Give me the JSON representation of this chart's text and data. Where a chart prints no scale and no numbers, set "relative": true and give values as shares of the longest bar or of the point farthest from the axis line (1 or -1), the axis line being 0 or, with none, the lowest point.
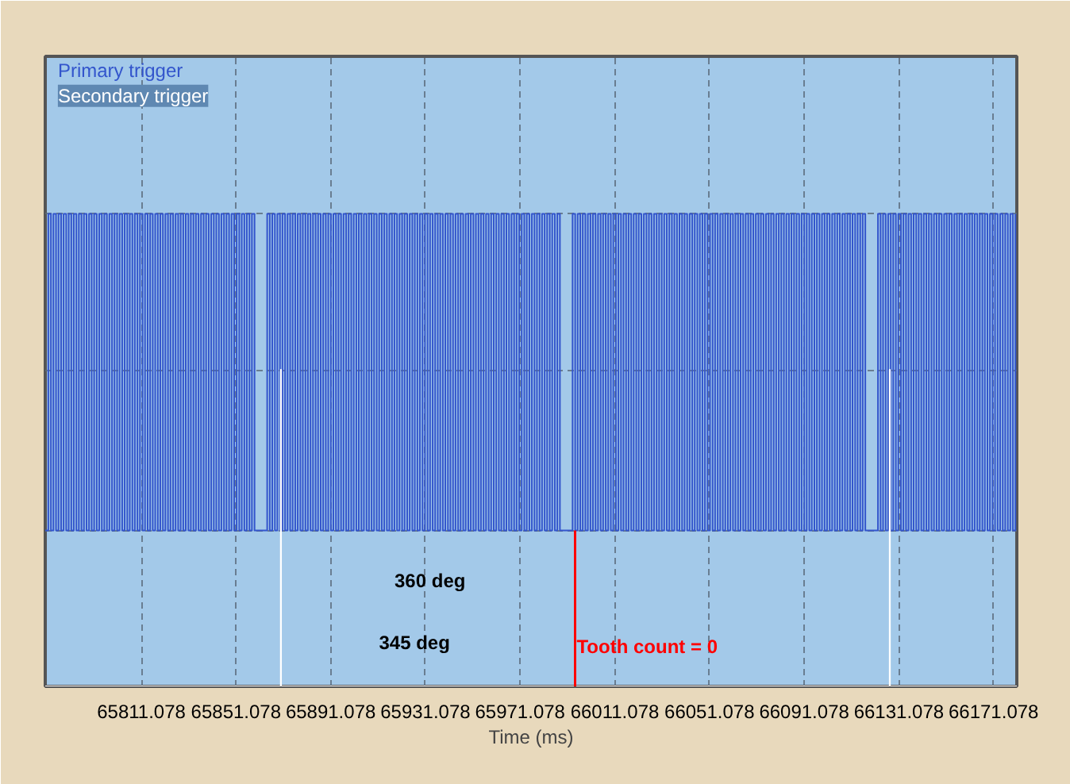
{
  "chart_data": {
    "type": "step",
    "relative": true,
    "xlabel": "Time (ms)",
    "xlim": [
      65770.5,
      66180.9
    ],
    "xticks": [
      {
        "value": 65811.078,
        "label": "65811.078"
      },
      {
        "value": 65851.078,
        "label": "65851.078"
      },
      {
        "value": 65891.078,
        "label": "65891.078"
      },
      {
        "value": 65931.078,
        "label": "65931.078"
      },
      {
        "value": 65971.078,
        "label": "65971.078"
      },
      {
        "value": 66011.078,
        "label": "66011.078"
      },
      {
        "value": 66051.078,
        "label": "66051.078"
      },
      {
        "value": 66091.078,
        "label": "66091.078"
      },
      {
        "value": 66131.078,
        "label": "66131.078"
      },
      {
        "value": 66171.078,
        "label": "66171.078"
      }
    ],
    "grid": true,
    "legend": "top left",
    "marker": "none",
    "line_style": "solid",
    "series": [
      {
        "name": "Primary trigger",
        "color": "#3355cc",
        "x": [
          65770.5,
          65771.8,
          65772.9,
          65773.95,
          65775.05,
          65776.1,
          65777.2,
          65778.25,
          65779.35,
          65780.4,
          65781.5,
          65782.55,
          65783.65,
          65784.7,
          65785.8,
          65786.85,
          65787.95,
          65789.0,
          65790.1,
          65791.15,
          65792.25,
          65793.3,
          65794.4,
          65795.45,
          65796.55,
          65797.6,
          65798.7,
          65799.75,
          65800.85,
          65801.9,
          65803.0,
          65804.05,
          65805.15,
          65806.2,
          65807.3,
          65808.35,
          65809.45,
          65810.5,
          65811.6,
          65812.65,
          65813.75,
          65814.8,
          65815.9,
          65816.95,
          65818.05,
          65819.1,
          65820.2,
          65821.25,
          65822.35,
          65823.4,
          65824.5,
          65825.55,
          65826.65,
          65827.7,
          65828.8,
          65829.85,
          65830.95,
          65832.0,
          65833.1,
          65834.15,
          65835.25,
          65836.3,
          65837.4,
          65838.45,
          65839.55,
          65840.6,
          65841.7,
          65842.75,
          65843.85,
          65844.9,
          65846.0,
          65847.05,
          65848.15,
          65849.2,
          65850.3,
          65851.35,
          65852.45,
          65853.5,
          65854.6,
          65855.65,
          65856.75,
          65857.8,
          65858.9,
          65864.25,
          65865.35,
          65866.4,
          65867.5,
          65868.55,
          65869.65,
          65870.7,
          65871.8,
          65872.85,
          65873.95,
          65875.0,
          65876.1,
          65877.15,
          65878.25,
          65879.3,
          65880.4,
          65881.45,
          65882.55,
          65883.6,
          65884.7,
          65885.75,
          65886.85,
          65887.9,
          65889.0,
          65890.05,
          65891.15,
          65892.2,
          65893.3,
          65894.35,
          65895.45,
          65896.5,
          65897.6,
          65898.65,
          65899.75,
          65900.8,
          65901.9,
          65902.95,
          65904.05,
          65905.1,
          65906.2,
          65907.25,
          65908.35,
          65909.4,
          65910.5,
          65911.55,
          65912.65,
          65913.7,
          65914.8,
          65915.85,
          65916.95,
          65918.0,
          65919.1,
          65920.15,
          65921.25,
          65922.3,
          65923.4,
          65924.45,
          65925.55,
          65926.6,
          65927.7,
          65928.75,
          65929.85,
          65930.9,
          65932.0,
          65933.05,
          65934.15,
          65935.2,
          65936.3,
          65937.35,
          65938.45,
          65939.5,
          65940.6,
          65941.65,
          65942.75,
          65943.8,
          65944.9,
          65945.95,
          65947.05,
          65948.1,
          65949.2,
          65950.25,
          65951.35,
          65952.4,
          65953.5,
          65954.55,
          65955.65,
          65956.7,
          65957.8,
          65958.85,
          65959.95,
          65961.0,
          65962.1,
          65963.15,
          65964.25,
          65965.3,
          65966.4,
          65967.45,
          65968.55,
          65969.6,
          65970.7,
          65971.75,
          65972.85,
          65973.9,
          65975.0,
          65976.05,
          65977.15,
          65978.2,
          65979.3,
          65980.35,
          65981.45,
          65982.5,
          65983.6,
          65984.65,
          65985.75,
          65986.8,
          65987.9,
          65993.25,
          65994.35,
          65995.4,
          65996.5,
          65997.55,
          65998.65,
          65999.7,
          66000.8,
          66001.85,
          66002.95,
          66004.0,
          66005.1,
          66006.15,
          66007.25,
          66008.3,
          66009.4,
          66010.45,
          66011.55,
          66012.6,
          66013.7,
          66014.75,
          66015.85,
          66016.9,
          66018.0,
          66019.05,
          66020.15,
          66021.2,
          66022.3,
          66023.35,
          66024.45,
          66025.5,
          66026.6,
          66027.65,
          66028.75,
          66029.8,
          66030.9,
          66031.95,
          66033.05,
          66034.1,
          66035.2,
          66036.25,
          66037.35,
          66038.4,
          66039.5,
          66040.55,
          66041.65,
          66042.7,
          66043.8,
          66044.85,
          66045.95,
          66047.0,
          66048.1,
          66049.15,
          66050.25,
          66051.3,
          66052.4,
          66053.45,
          66054.55,
          66055.6,
          66056.7,
          66057.75,
          66058.85,
          66059.9,
          66061.0,
          66062.05,
          66063.15,
          66064.2,
          66065.3,
          66066.35,
          66067.45,
          66068.5,
          66069.6,
          66070.65,
          66071.75,
          66072.8,
          66073.9,
          66074.95,
          66076.05,
          66077.1,
          66078.2,
          66079.25,
          66080.35,
          66081.4,
          66082.5,
          66083.55,
          66084.65,
          66085.7,
          66086.8,
          66087.85,
          66088.95,
          66090.0,
          66091.1,
          66092.15,
          66093.25,
          66094.3,
          66095.4,
          66096.45,
          66097.55,
          66098.6,
          66099.7,
          66100.75,
          66101.85,
          66102.9,
          66104.0,
          66105.05,
          66106.15,
          66107.2,
          66108.3,
          66109.35,
          66110.45,
          66111.5,
          66112.6,
          66113.65,
          66114.75,
          66115.8,
          66116.9,
          66122.25,
          66123.35,
          66124.4,
          66125.5,
          66126.55,
          66127.65,
          66128.7,
          66129.8,
          66130.85,
          66131.95,
          66133.0,
          66134.1,
          66135.15,
          66136.25,
          66137.3,
          66138.4,
          66139.45,
          66140.55,
          66141.6,
          66142.7,
          66143.75,
          66144.85,
          66145.9,
          66147.0,
          66148.05,
          66149.15,
          66150.2,
          66151.3,
          66152.35,
          66153.45,
          66154.5,
          66155.6,
          66156.65,
          66157.75,
          66158.8,
          66159.9,
          66160.95,
          66162.05,
          66163.1,
          66164.2,
          66165.25,
          66166.35,
          66167.4,
          66168.5,
          66169.55,
          66170.65,
          66171.7,
          66172.8,
          66173.85,
          66174.95,
          66176.0,
          66177.1,
          66178.15,
          66179.25,
          66180.3
        ],
        "values": [
          0.33,
          1,
          0.33,
          1,
          0.33,
          1,
          0.33,
          1,
          0.33,
          1,
          0.33,
          1,
          0.33,
          1,
          0.33,
          1,
          0.33,
          1,
          0.33,
          1,
          0.33,
          1,
          0.33,
          1,
          0.33,
          1,
          0.33,
          1,
          0.33,
          1,
          0.33,
          1,
          0.33,
          1,
          0.33,
          1,
          0.33,
          1,
          0.33,
          1,
          0.33,
          1,
          0.33,
          1,
          0.33,
          1,
          0.33,
          1,
          0.33,
          1,
          0.33,
          1,
          0.33,
          1,
          0.33,
          1,
          0.33,
          1,
          0.33,
          1,
          0.33,
          1,
          0.33,
          1,
          0.33,
          1,
          0.33,
          1,
          0.33,
          1,
          0.33,
          1,
          0.33,
          1,
          0.33,
          1,
          0.33,
          1,
          0.33,
          1,
          0.33,
          1,
          0.33,
          1,
          0.33,
          1,
          0.33,
          1,
          0.33,
          1,
          0.33,
          1,
          0.33,
          1,
          0.33,
          1,
          0.33,
          1,
          0.33,
          1,
          0.33,
          1,
          0.33,
          1,
          0.33,
          1,
          0.33,
          1,
          0.33,
          1,
          0.33,
          1,
          0.33,
          1,
          0.33,
          1,
          0.33,
          1,
          0.33,
          1,
          0.33,
          1,
          0.33,
          1,
          0.33,
          1,
          0.33,
          1,
          0.33,
          1,
          0.33,
          1,
          0.33,
          1,
          0.33,
          1,
          0.33,
          1,
          0.33,
          1,
          0.33,
          1,
          0.33,
          1,
          0.33,
          1,
          0.33,
          1,
          0.33,
          1,
          0.33,
          1,
          0.33,
          1,
          0.33,
          1,
          0.33,
          1,
          0.33,
          1,
          0.33,
          1,
          0.33,
          1,
          0.33,
          1,
          0.33,
          1,
          0.33,
          1,
          0.33,
          1,
          0.33,
          1,
          0.33,
          1,
          0.33,
          1,
          0.33,
          1,
          0.33,
          1,
          0.33,
          1,
          0.33,
          1,
          0.33,
          1,
          0.33,
          1,
          0.33,
          1,
          0.33,
          1,
          0.33,
          1,
          0.33,
          1,
          0.33,
          1,
          0.33,
          1,
          0.33,
          1,
          0.33,
          1,
          0.33,
          1,
          0.33,
          1,
          0.33,
          1,
          0.33,
          1,
          0.33,
          1,
          0.33,
          1,
          0.33,
          1,
          0.33,
          1,
          0.33,
          1,
          0.33,
          1,
          0.33,
          1,
          0.33,
          1,
          0.33,
          1,
          0.33,
          1,
          0.33,
          1,
          0.33,
          1,
          0.33,
          1,
          0.33,
          1,
          0.33,
          1,
          0.33,
          1,
          0.33,
          1,
          0.33,
          1,
          0.33,
          1,
          0.33,
          1,
          0.33,
          1,
          0.33,
          1,
          0.33,
          1,
          0.33,
          1,
          0.33,
          1,
          0.33,
          1,
          0.33,
          1,
          0.33,
          1,
          0.33,
          1,
          0.33,
          1,
          0.33,
          1,
          0.33,
          1,
          0.33,
          1,
          0.33,
          1,
          0.33,
          1,
          0.33,
          1,
          0.33,
          1,
          0.33,
          1,
          0.33,
          1,
          0.33,
          1,
          0.33,
          1,
          0.33,
          1,
          0.33,
          1,
          0.33,
          1,
          0.33,
          1,
          0.33,
          1,
          0.33,
          1,
          0.33,
          1,
          0.33,
          1,
          0.33,
          1,
          0.33,
          1,
          0.33,
          1,
          0.33,
          1,
          0.33,
          1,
          0.33,
          1,
          0.33,
          1,
          0.33,
          1,
          0.33,
          1,
          0.33,
          1,
          0.33,
          1,
          0.33,
          1,
          0.33,
          1,
          0.33,
          1,
          0.33,
          1,
          0.33,
          1,
          0.33,
          1,
          0.33,
          1,
          0.33,
          1,
          0.33,
          1,
          0.33,
          1,
          0.33,
          1,
          0.33,
          1,
          0.33,
          1,
          0.33,
          1,
          0.33,
          1,
          0.33,
          1,
          0.33,
          1,
          0.33,
          1
        ]
      },
      {
        "name": "Secondary trigger",
        "color": "#ffffff",
        "x": [
          65770.5,
          65870.0,
          65870.1,
          66127.2,
          66127.3,
          66180.9
        ],
        "values": [
          0,
          0.67,
          0,
          0.67,
          0,
          0
        ]
      }
    ],
    "ref_lines": [
      {
        "axis": "x",
        "value": 65994.3,
        "color": "#ff0000"
      }
    ],
    "annotations": [
      "360 deg",
      "345 deg",
      "Tooth count = 0"
    ]
  }
}
